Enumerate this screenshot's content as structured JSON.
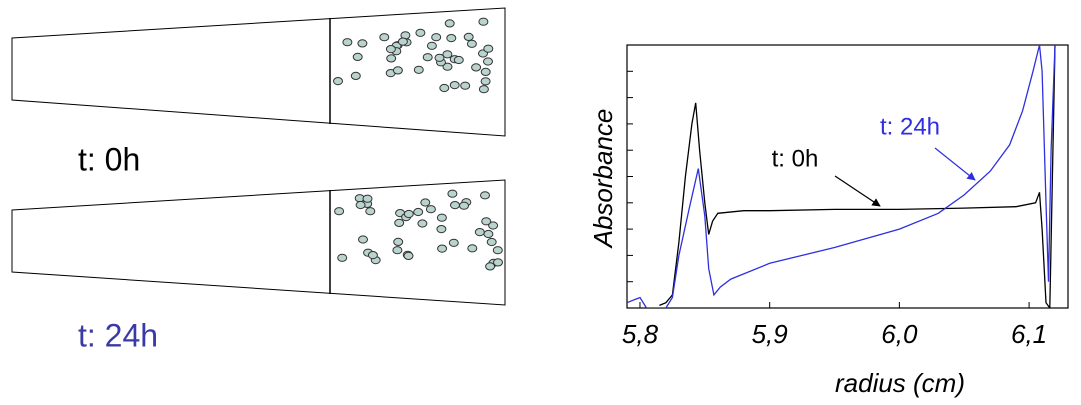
{
  "diagram": {
    "cells": [
      {
        "label": "t: 0h",
        "color": "#000000"
      },
      {
        "label": "t: 24h",
        "color": "#3a3aa6"
      }
    ]
  },
  "chart_data": {
    "type": "line",
    "y_label": "Absorbance",
    "x_label": "radius (cm)",
    "xlim": [
      5.79,
      6.13
    ],
    "ylim": [
      0,
      1
    ],
    "xticks": [
      {
        "value": 5.8,
        "label": "5,8"
      },
      {
        "value": 5.9,
        "label": "5,9"
      },
      {
        "value": 6.0,
        "label": "6,0"
      },
      {
        "value": 6.1,
        "label": "6,1"
      }
    ],
    "yticks": [
      0.1,
      0.2,
      0.3,
      0.4,
      0.5,
      0.6,
      0.7,
      0.8,
      0.9
    ],
    "series": [
      {
        "name": "t: 0h",
        "color": "#000000",
        "x": [
          5.815,
          5.82,
          5.825,
          5.83,
          5.835,
          5.84,
          5.843,
          5.846,
          5.85,
          5.853,
          5.856,
          5.86,
          5.88,
          5.9,
          5.95,
          6.0,
          6.05,
          6.09,
          6.105,
          6.108,
          6.11,
          6.113,
          6.116,
          6.118,
          6.12
        ],
        "values": [
          0.01,
          0.02,
          0.05,
          0.25,
          0.5,
          0.7,
          0.78,
          0.6,
          0.4,
          0.28,
          0.33,
          0.36,
          0.37,
          0.37,
          0.375,
          0.375,
          0.38,
          0.385,
          0.4,
          0.44,
          0.3,
          0.02,
          0.0,
          0.5,
          1.0
        ]
      },
      {
        "name": "t: 24h",
        "color": "#2f2fe0",
        "x": [
          5.79,
          5.8,
          5.805,
          5.82,
          5.825,
          5.83,
          5.838,
          5.845,
          5.85,
          5.853,
          5.857,
          5.862,
          5.87,
          5.9,
          5.95,
          6.0,
          6.03,
          6.05,
          6.07,
          6.085,
          6.095,
          6.103,
          6.108,
          6.11,
          6.113,
          6.115,
          6.117,
          6.12
        ],
        "values": [
          0.02,
          0.04,
          0.0,
          0.0,
          0.04,
          0.2,
          0.38,
          0.53,
          0.35,
          0.15,
          0.05,
          0.08,
          0.11,
          0.17,
          0.23,
          0.3,
          0.36,
          0.43,
          0.52,
          0.62,
          0.75,
          0.9,
          1.0,
          0.9,
          0.4,
          0.1,
          0.6,
          1.0
        ]
      }
    ]
  }
}
